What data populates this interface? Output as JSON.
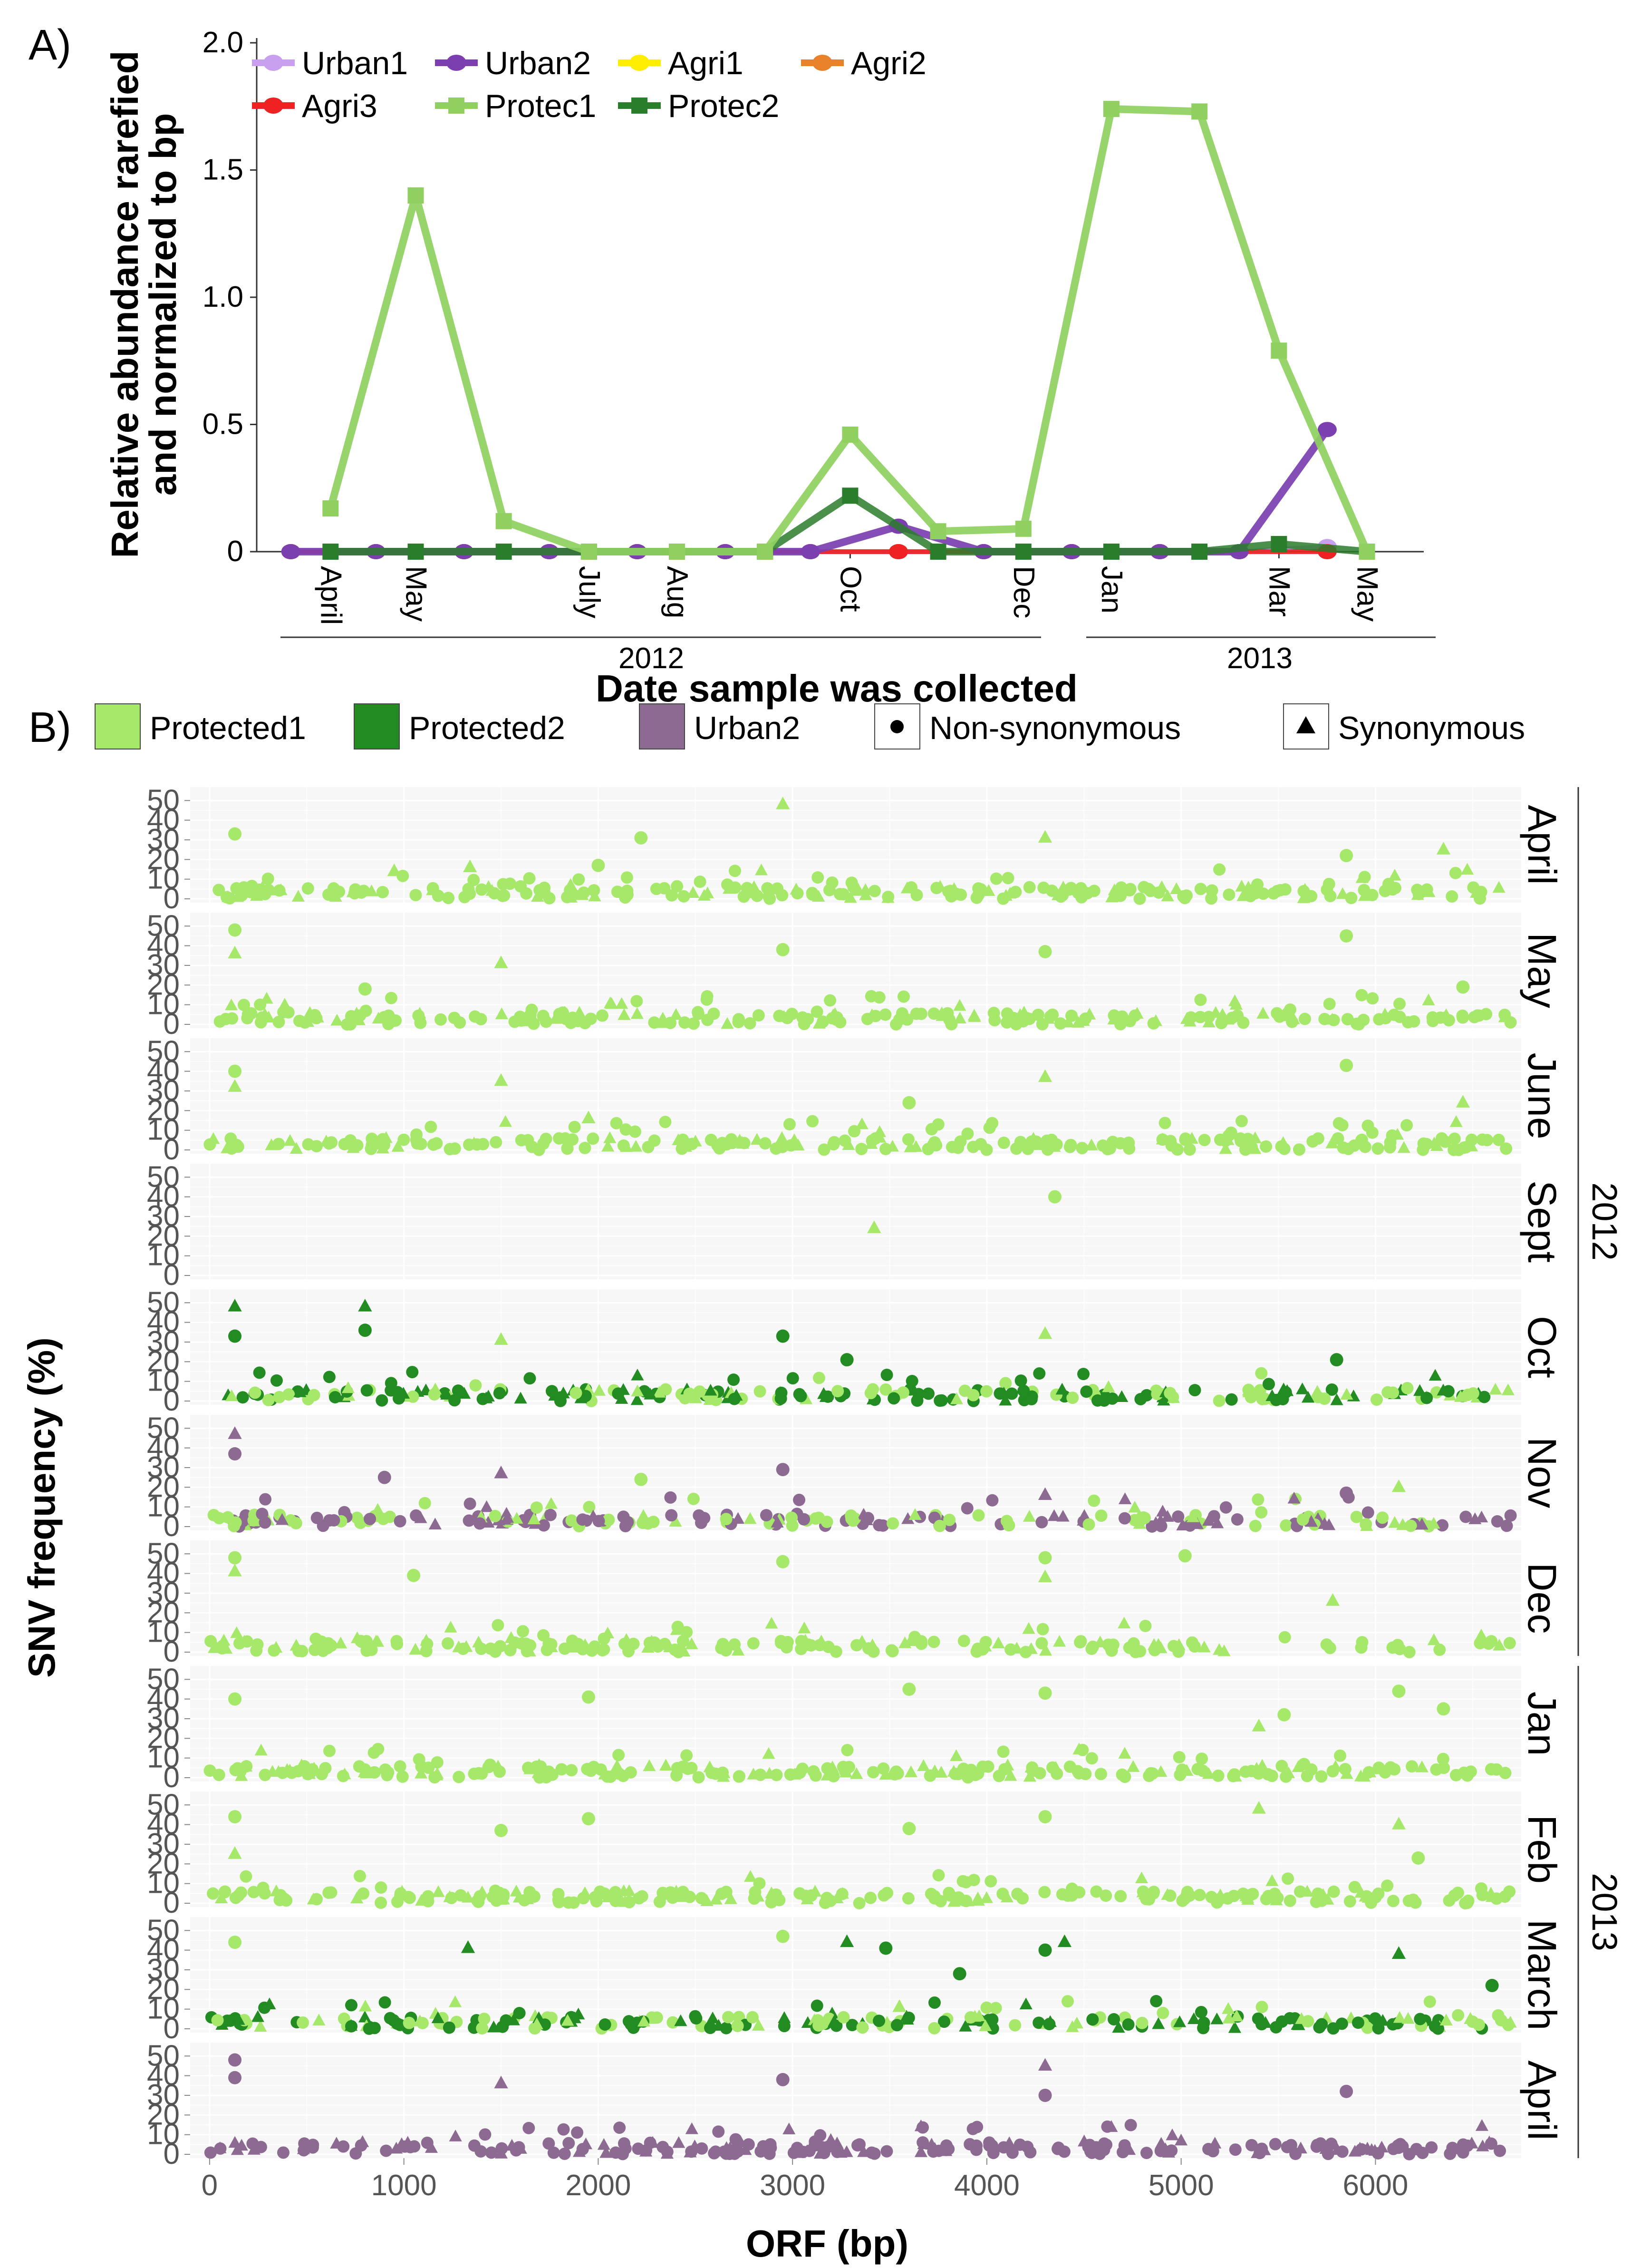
{
  "panel_a": {
    "letter": "A)",
    "legend": [
      "Urban1",
      "Urban2",
      "Agri1",
      "Agri2",
      "Agri3",
      "Protec1",
      "Protec2"
    ],
    "ylabel_line1": "Relative abundance rarefied",
    "ylabel_line2": "and normalized to bp",
    "xlabel": "Date sample was collected",
    "month_labels": [
      "April",
      "May",
      "July",
      "Aug",
      "Oct",
      "Dec",
      "Jan",
      "Mar",
      "May"
    ],
    "year_labels": [
      "2012",
      "2013"
    ],
    "yticks": [
      "0",
      "0.5",
      "1.0",
      "1.5",
      "2.0"
    ]
  },
  "panel_b": {
    "letter": "B)",
    "legend": [
      "Protected1",
      "Protected2",
      "Urban2",
      "Non-synonymous",
      "Synonymous"
    ],
    "ylabel": "SNV frequency (%)",
    "xlabel": "ORF (bp)",
    "xticks": [
      "0",
      "1000",
      "2000",
      "3000",
      "4000",
      "5000",
      "6000"
    ],
    "yticks": [
      "0",
      "10",
      "20",
      "30",
      "40",
      "50"
    ],
    "facets": [
      "April",
      "May",
      "June",
      "Sept",
      "Oct",
      "Nov",
      "Dec",
      "Jan",
      "Feb",
      "March",
      "April"
    ],
    "years": [
      "2012",
      "2013"
    ]
  },
  "chart_data": [
    {
      "type": "line",
      "x": [
        "2012-04-01",
        "2012-04-15",
        "2012-05-01",
        "2012-05-15",
        "2012-06-01",
        "2012-06-15",
        "2012-07-01",
        "2012-07-15",
        "2012-08-01",
        "2012-08-15",
        "2012-09-01",
        "2012-09-15",
        "2012-10-01",
        "2012-10-15",
        "2012-11-01",
        "2012-11-15",
        "2012-12-01",
        "2012-12-15",
        "2013-01-01",
        "2013-01-15",
        "2013-02-01",
        "2013-02-15",
        "2013-03-01",
        "2013-03-15",
        "2013-04-01",
        "2013-04-15"
      ],
      "xlabel": "Date sample was collected",
      "ylabel": "Relative abundance rarefied and normalized to bp",
      "ylim": [
        0,
        2.0
      ],
      "legend_position": "top",
      "series": [
        {
          "name": "Urban1",
          "color": "#c9a0f0",
          "x": [
            "2012-04-01",
            "2012-05-01",
            "2012-06-01",
            "2012-07-01",
            "2012-08-01",
            "2012-09-01",
            "2012-10-01",
            "2012-11-01",
            "2012-12-01",
            "2013-01-01",
            "2013-02-01",
            "2013-03-01",
            "2013-04-01"
          ],
          "values": [
            0,
            0,
            0,
            0,
            0,
            0,
            0,
            0,
            0,
            0,
            0,
            0,
            0.02
          ]
        },
        {
          "name": "Urban2",
          "color": "#7b3fb0",
          "x": [
            "2012-04-01",
            "2012-05-01",
            "2012-06-01",
            "2012-07-01",
            "2012-08-01",
            "2012-09-01",
            "2012-10-01",
            "2012-11-01",
            "2012-12-01",
            "2013-01-01",
            "2013-02-01",
            "2013-03-01",
            "2013-04-01"
          ],
          "values": [
            0,
            0,
            0,
            0,
            0,
            0,
            0,
            0.1,
            0,
            0,
            0,
            0,
            0.48
          ]
        },
        {
          "name": "Agri1",
          "color": "#ffee00",
          "x": [
            "2012-04-01",
            "2012-05-01",
            "2012-06-01",
            "2012-07-01",
            "2012-08-01",
            "2012-09-01",
            "2012-10-01",
            "2012-11-01",
            "2012-12-01",
            "2013-01-01",
            "2013-02-01",
            "2013-03-01"
          ],
          "values": [
            0,
            0,
            0,
            0,
            0,
            0,
            0,
            0,
            0,
            0,
            0,
            0
          ]
        },
        {
          "name": "Agri2",
          "color": "#e8822a",
          "x": [
            "2012-04-01",
            "2012-05-01",
            "2012-06-01",
            "2012-07-01",
            "2012-08-01",
            "2012-09-01",
            "2012-10-01",
            "2012-11-01",
            "2012-12-01",
            "2013-01-01",
            "2013-02-01",
            "2013-03-01"
          ],
          "values": [
            0,
            0,
            0,
            0,
            0,
            0,
            0,
            0,
            0,
            0,
            0,
            0
          ]
        },
        {
          "name": "Agri3",
          "color": "#ee2222",
          "x": [
            "2012-04-01",
            "2012-05-01",
            "2012-06-01",
            "2012-07-01",
            "2012-08-01",
            "2012-09-01",
            "2012-10-01",
            "2012-11-01",
            "2012-12-01",
            "2013-01-01",
            "2013-02-01",
            "2013-03-01",
            "2013-04-01"
          ],
          "values": [
            0,
            0,
            0,
            0,
            0,
            0,
            0,
            0,
            0,
            0,
            0,
            0,
            0
          ]
        },
        {
          "name": "Protec1",
          "color": "#8fd060",
          "x": [
            "2012-04-15",
            "2012-05-15",
            "2012-06-15",
            "2012-07-15",
            "2012-08-15",
            "2012-09-15",
            "2012-10-15",
            "2012-11-15",
            "2012-12-15",
            "2013-01-15",
            "2013-02-15",
            "2013-03-15",
            "2013-04-15"
          ],
          "values": [
            0.17,
            1.4,
            0.12,
            0,
            0,
            0,
            0.46,
            0.08,
            0.09,
            1.74,
            1.73,
            0.79,
            0
          ]
        },
        {
          "name": "Protec2",
          "color": "#2a7d2a",
          "x": [
            "2012-04-15",
            "2012-05-15",
            "2012-06-15",
            "2012-07-15",
            "2012-08-15",
            "2012-09-15",
            "2012-10-15",
            "2012-11-15",
            "2012-12-15",
            "2013-01-15",
            "2013-02-15",
            "2013-03-15",
            "2013-04-15"
          ],
          "values": [
            0,
            0,
            0,
            0,
            0,
            0,
            0.22,
            0,
            0,
            0,
            0,
            0.03,
            0
          ]
        }
      ]
    },
    {
      "type": "scatter",
      "xlabel": "ORF (bp)",
      "ylabel": "SNV frequency (%)",
      "xlim": [
        -100,
        6750
      ],
      "ylim": [
        0,
        52
      ],
      "facets": [
        "April 2012",
        "May 2012",
        "June 2012",
        "Sept 2012",
        "Oct 2012",
        "Nov 2012",
        "Dec 2012",
        "Jan 2013",
        "Feb 2013",
        "March 2013",
        "April 2013"
      ],
      "series": [
        {
          "name": "Protected1",
          "color": "#a6e86a"
        },
        {
          "name": "Protected2",
          "color": "#228b22"
        },
        {
          "name": "Urban2",
          "color": "#8c6a92"
        }
      ],
      "shapes": {
        "Non-synonymous": "circle",
        "Synonymous": "triangle"
      },
      "baseline_range": [
        0,
        8
      ],
      "facet_series": [
        [
          "Protected1"
        ],
        [
          "Protected1"
        ],
        [
          "Protected1"
        ],
        [
          "Protected1"
        ],
        [
          "Protected1",
          "Protected2"
        ],
        [
          "Protected1",
          "Urban2"
        ],
        [
          "Protected1"
        ],
        [
          "Protected1"
        ],
        [
          "Protected1"
        ],
        [
          "Protected1",
          "Protected2"
        ],
        [
          "Urban2"
        ]
      ],
      "facet_peaks": [
        [
          [
            130,
            33,
            "Protected1",
            "circle"
          ],
          [
            950,
            14,
            "Protected1",
            "triangle"
          ],
          [
            1340,
            16,
            "Protected1",
            "triangle"
          ],
          [
            2000,
            17,
            "Protected1",
            "circle"
          ],
          [
            2220,
            31,
            "Protected1",
            "circle"
          ],
          [
            2950,
            48,
            "Protected1",
            "triangle"
          ],
          [
            4300,
            31,
            "Protected1",
            "triangle"
          ],
          [
            5850,
            22,
            "Protected1",
            "circle"
          ],
          [
            6350,
            25,
            "Protected1",
            "triangle"
          ]
        ],
        [
          [
            130,
            48,
            "Protected1",
            "circle"
          ],
          [
            130,
            36,
            "Protected1",
            "triangle"
          ],
          [
            800,
            18,
            "Protected1",
            "circle"
          ],
          [
            1500,
            31,
            "Protected1",
            "triangle"
          ],
          [
            2950,
            38,
            "Protected1",
            "circle"
          ],
          [
            4300,
            37,
            "Protected1",
            "circle"
          ],
          [
            5850,
            45,
            "Protected1",
            "circle"
          ],
          [
            6450,
            19,
            "Protected1",
            "circle"
          ]
        ],
        [
          [
            130,
            40,
            "Protected1",
            "circle"
          ],
          [
            130,
            32,
            "Protected1",
            "triangle"
          ],
          [
            1500,
            35,
            "Protected1",
            "triangle"
          ],
          [
            1950,
            16,
            "Protected1",
            "triangle"
          ],
          [
            3600,
            24,
            "Protected1",
            "circle"
          ],
          [
            4300,
            37,
            "Protected1",
            "triangle"
          ],
          [
            5850,
            43,
            "Protected1",
            "circle"
          ],
          [
            6450,
            24,
            "Protected1",
            "triangle"
          ]
        ],
        [
          [
            3420,
            24,
            "Protected1",
            "triangle"
          ],
          [
            4350,
            40,
            "Protected1",
            "circle"
          ]
        ],
        [
          [
            130,
            48,
            "Protected2",
            "triangle"
          ],
          [
            130,
            33,
            "Protected2",
            "circle"
          ],
          [
            800,
            48,
            "Protected2",
            "triangle"
          ],
          [
            800,
            36,
            "Protected2",
            "circle"
          ],
          [
            1500,
            31,
            "Protected1",
            "triangle"
          ],
          [
            2950,
            33,
            "Protected2",
            "circle"
          ],
          [
            3280,
            21,
            "Protected2",
            "circle"
          ],
          [
            4300,
            34,
            "Protected1",
            "triangle"
          ],
          [
            5800,
            21,
            "Protected2",
            "circle"
          ]
        ],
        [
          [
            130,
            47,
            "Urban2",
            "triangle"
          ],
          [
            130,
            37,
            "Urban2",
            "circle"
          ],
          [
            900,
            25,
            "Urban2",
            "circle"
          ],
          [
            1500,
            27,
            "Urban2",
            "triangle"
          ],
          [
            2220,
            24,
            "Protected1",
            "circle"
          ],
          [
            2950,
            29,
            "Urban2",
            "circle"
          ],
          [
            4300,
            16,
            "Urban2",
            "triangle"
          ],
          [
            5850,
            17,
            "Urban2",
            "circle"
          ],
          [
            6120,
            20,
            "Protected1",
            "triangle"
          ]
        ],
        [
          [
            130,
            48,
            "Protected1",
            "circle"
          ],
          [
            130,
            41,
            "Protected1",
            "triangle"
          ],
          [
            1050,
            39,
            "Protected1",
            "circle"
          ],
          [
            2950,
            46,
            "Protected1",
            "circle"
          ],
          [
            4300,
            48,
            "Protected1",
            "circle"
          ],
          [
            4300,
            38,
            "Protected1",
            "triangle"
          ],
          [
            5020,
            49,
            "Protected1",
            "circle"
          ],
          [
            5780,
            26,
            "Protected1",
            "triangle"
          ]
        ],
        [
          [
            130,
            40,
            "Protected1",
            "circle"
          ],
          [
            1950,
            41,
            "Protected1",
            "circle"
          ],
          [
            3600,
            45,
            "Protected1",
            "circle"
          ],
          [
            4300,
            43,
            "Protected1",
            "circle"
          ],
          [
            5400,
            26,
            "Protected1",
            "triangle"
          ],
          [
            5530,
            32,
            "Protected1",
            "circle"
          ],
          [
            6120,
            44,
            "Protected1",
            "circle"
          ],
          [
            6350,
            35,
            "Protected1",
            "circle"
          ]
        ],
        [
          [
            130,
            44,
            "Protected1",
            "circle"
          ],
          [
            130,
            25,
            "Protected1",
            "triangle"
          ],
          [
            1500,
            37,
            "Protected1",
            "circle"
          ],
          [
            1950,
            43,
            "Protected1",
            "circle"
          ],
          [
            3600,
            38,
            "Protected1",
            "circle"
          ],
          [
            4300,
            44,
            "Protected1",
            "circle"
          ],
          [
            5400,
            48,
            "Protected1",
            "triangle"
          ],
          [
            6120,
            40,
            "Protected1",
            "triangle"
          ],
          [
            6220,
            23,
            "Protected1",
            "circle"
          ]
        ],
        [
          [
            130,
            44,
            "Protected1",
            "circle"
          ],
          [
            1330,
            41,
            "Protected2",
            "triangle"
          ],
          [
            2950,
            47,
            "Protected1",
            "circle"
          ],
          [
            3280,
            44,
            "Protected2",
            "triangle"
          ],
          [
            3480,
            41,
            "Protected2",
            "circle"
          ],
          [
            3550,
            11,
            "Protected1",
            "triangle"
          ],
          [
            3860,
            28,
            "Protected2",
            "circle"
          ],
          [
            4300,
            40,
            "Protected2",
            "circle"
          ],
          [
            4400,
            44,
            "Protected2",
            "triangle"
          ],
          [
            6120,
            38,
            "Protected2",
            "triangle"
          ],
          [
            6600,
            22,
            "Protected2",
            "circle"
          ]
        ],
        [
          [
            130,
            48,
            "Urban2",
            "circle"
          ],
          [
            130,
            39,
            "Urban2",
            "circle"
          ],
          [
            1500,
            36,
            "Urban2",
            "triangle"
          ],
          [
            2950,
            38,
            "Urban2",
            "circle"
          ],
          [
            4300,
            45,
            "Urban2",
            "triangle"
          ],
          [
            4300,
            30,
            "Urban2",
            "circle"
          ],
          [
            5850,
            32,
            "Urban2",
            "circle"
          ]
        ]
      ]
    }
  ]
}
